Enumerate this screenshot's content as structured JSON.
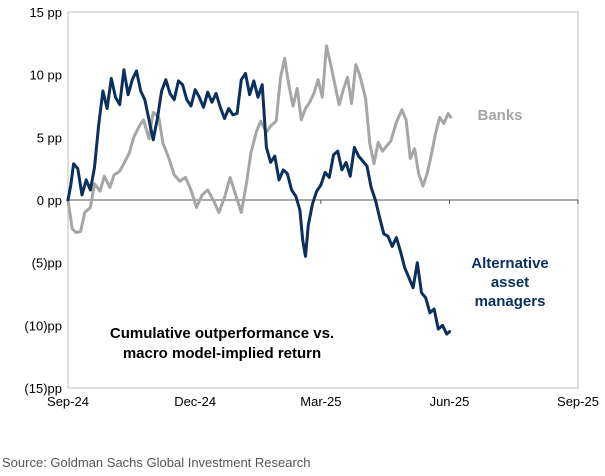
{
  "chart_data": {
    "type": "line",
    "title_lines": [
      "Cumulative outperformance vs.",
      "macro model-implied return"
    ],
    "xlabel": "",
    "ylabel": "",
    "ylim": [
      -15,
      15
    ],
    "y_ticks": [
      15,
      10,
      5,
      0,
      -5,
      -10,
      -15
    ],
    "y_tick_labels": [
      "15 pp",
      "10 pp",
      "5 pp",
      "0 pp",
      "(5)pp",
      "(10)pp",
      "(15)pp"
    ],
    "x_ticks": [
      "2024-09-01",
      "2024-12-01",
      "2025-03-01",
      "2025-06-01",
      "2025-09-01"
    ],
    "x_tick_labels": [
      "Sep-24",
      "Dec-24",
      "Mar-25",
      "Jun-25",
      "Sep-25"
    ],
    "grid": false,
    "series": [
      {
        "name": "Banks",
        "color": "#a6a6a6",
        "points": [
          [
            "2024-09-01",
            0.0
          ],
          [
            "2024-09-04",
            -2.3
          ],
          [
            "2024-09-07",
            -2.6
          ],
          [
            "2024-09-10",
            -2.5
          ],
          [
            "2024-09-13",
            -1.0
          ],
          [
            "2024-09-17",
            -0.6
          ],
          [
            "2024-09-20",
            1.3
          ],
          [
            "2024-09-24",
            0.7
          ],
          [
            "2024-09-27",
            1.9
          ],
          [
            "2024-10-01",
            1.0
          ],
          [
            "2024-10-04",
            2.0
          ],
          [
            "2024-10-08",
            2.3
          ],
          [
            "2024-10-11",
            2.9
          ],
          [
            "2024-10-15",
            3.8
          ],
          [
            "2024-10-18",
            5.0
          ],
          [
            "2024-10-22",
            5.9
          ],
          [
            "2024-10-25",
            6.4
          ],
          [
            "2024-10-29",
            4.9
          ],
          [
            "2024-11-01",
            7.0
          ],
          [
            "2024-11-05",
            6.6
          ],
          [
            "2024-11-08",
            4.5
          ],
          [
            "2024-11-12",
            3.4
          ],
          [
            "2024-11-16",
            2.0
          ],
          [
            "2024-11-20",
            1.5
          ],
          [
            "2024-11-24",
            1.8
          ],
          [
            "2024-11-28",
            0.8
          ],
          [
            "2024-12-02",
            -0.6
          ],
          [
            "2024-12-06",
            0.4
          ],
          [
            "2024-12-10",
            0.8
          ],
          [
            "2024-12-14",
            0.0
          ],
          [
            "2024-12-18",
            -1.0
          ],
          [
            "2024-12-22",
            0.2
          ],
          [
            "2024-12-26",
            1.8
          ],
          [
            "2024-12-30",
            0.4
          ],
          [
            "2025-01-03",
            -1.0
          ],
          [
            "2025-01-07",
            1.5
          ],
          [
            "2025-01-10",
            3.8
          ],
          [
            "2025-01-14",
            5.5
          ],
          [
            "2025-01-17",
            6.3
          ],
          [
            "2025-01-21",
            5.4
          ],
          [
            "2025-01-24",
            5.9
          ],
          [
            "2025-01-28",
            6.3
          ],
          [
            "2025-01-31",
            9.7
          ],
          [
            "2025-02-03",
            11.3
          ],
          [
            "2025-02-06",
            9.2
          ],
          [
            "2025-02-09",
            7.5
          ],
          [
            "2025-02-12",
            8.9
          ],
          [
            "2025-02-15",
            6.4
          ],
          [
            "2025-02-18",
            7.3
          ],
          [
            "2025-02-21",
            7.8
          ],
          [
            "2025-02-24",
            8.5
          ],
          [
            "2025-02-27",
            9.6
          ],
          [
            "2025-03-02",
            8.2
          ],
          [
            "2025-03-05",
            12.3
          ],
          [
            "2025-03-08",
            10.8
          ],
          [
            "2025-03-11",
            9.2
          ],
          [
            "2025-03-14",
            7.6
          ],
          [
            "2025-03-17",
            8.8
          ],
          [
            "2025-03-20",
            9.8
          ],
          [
            "2025-03-23",
            7.7
          ],
          [
            "2025-03-26",
            10.8
          ],
          [
            "2025-03-29",
            9.9
          ],
          [
            "2025-04-02",
            8.1
          ],
          [
            "2025-04-05",
            4.5
          ],
          [
            "2025-04-08",
            2.9
          ],
          [
            "2025-04-11",
            4.6
          ],
          [
            "2025-04-14",
            3.9
          ],
          [
            "2025-04-17",
            4.3
          ],
          [
            "2025-04-20",
            4.7
          ],
          [
            "2025-04-24",
            6.2
          ],
          [
            "2025-04-28",
            7.2
          ],
          [
            "2025-05-01",
            6.4
          ],
          [
            "2025-05-04",
            3.3
          ],
          [
            "2025-05-07",
            4.1
          ],
          [
            "2025-05-10",
            2.1
          ],
          [
            "2025-05-13",
            1.1
          ],
          [
            "2025-05-16",
            2.1
          ],
          [
            "2025-05-19",
            3.6
          ],
          [
            "2025-05-22",
            5.3
          ],
          [
            "2025-05-25",
            6.6
          ],
          [
            "2025-05-28",
            6.1
          ],
          [
            "2025-05-31",
            6.9
          ],
          [
            "2025-06-02",
            6.6
          ]
        ]
      },
      {
        "name": "Alternative asset managers",
        "label_lines": [
          "Alternative",
          "asset",
          "managers"
        ],
        "color": "#0b2f5e",
        "points": [
          [
            "2024-09-01",
            0.0
          ],
          [
            "2024-09-03",
            1.2
          ],
          [
            "2024-09-05",
            2.9
          ],
          [
            "2024-09-08",
            2.5
          ],
          [
            "2024-09-11",
            0.4
          ],
          [
            "2024-09-14",
            1.6
          ],
          [
            "2024-09-17",
            0.8
          ],
          [
            "2024-09-20",
            2.6
          ],
          [
            "2024-09-23",
            6.0
          ],
          [
            "2024-09-26",
            8.7
          ],
          [
            "2024-09-29",
            7.3
          ],
          [
            "2024-10-02",
            9.7
          ],
          [
            "2024-10-05",
            8.2
          ],
          [
            "2024-10-08",
            7.6
          ],
          [
            "2024-10-11",
            10.4
          ],
          [
            "2024-10-14",
            8.4
          ],
          [
            "2024-10-17",
            9.6
          ],
          [
            "2024-10-20",
            10.3
          ],
          [
            "2024-10-23",
            8.7
          ],
          [
            "2024-10-26",
            8.0
          ],
          [
            "2024-10-29",
            6.4
          ],
          [
            "2024-11-01",
            4.8
          ],
          [
            "2024-11-04",
            6.5
          ],
          [
            "2024-11-07",
            8.7
          ],
          [
            "2024-11-10",
            9.6
          ],
          [
            "2024-11-13",
            8.5
          ],
          [
            "2024-11-16",
            8.0
          ],
          [
            "2024-11-19",
            9.5
          ],
          [
            "2024-11-22",
            9.2
          ],
          [
            "2024-11-25",
            8.0
          ],
          [
            "2024-11-28",
            7.5
          ],
          [
            "2024-12-01",
            8.8
          ],
          [
            "2024-12-04",
            8.2
          ],
          [
            "2024-12-07",
            7.4
          ],
          [
            "2024-12-10",
            8.6
          ],
          [
            "2024-12-13",
            7.8
          ],
          [
            "2024-12-16",
            8.5
          ],
          [
            "2024-12-19",
            7.4
          ],
          [
            "2024-12-22",
            6.5
          ],
          [
            "2024-12-25",
            7.3
          ],
          [
            "2024-12-28",
            6.8
          ],
          [
            "2024-12-31",
            6.9
          ],
          [
            "2025-01-03",
            9.6
          ],
          [
            "2025-01-06",
            10.1
          ],
          [
            "2025-01-09",
            8.4
          ],
          [
            "2025-01-12",
            9.5
          ],
          [
            "2025-01-15",
            8.2
          ],
          [
            "2025-01-18",
            9.2
          ],
          [
            "2025-01-21",
            4.2
          ],
          [
            "2025-01-24",
            3.0
          ],
          [
            "2025-01-27",
            3.5
          ],
          [
            "2025-01-30",
            1.6
          ],
          [
            "2025-02-02",
            2.4
          ],
          [
            "2025-02-05",
            2.1
          ],
          [
            "2025-02-08",
            0.8
          ],
          [
            "2025-02-11",
            0.3
          ],
          [
            "2025-02-14",
            -0.8
          ],
          [
            "2025-02-16",
            -3.2
          ],
          [
            "2025-02-18",
            -4.5
          ],
          [
            "2025-02-20",
            -2.0
          ],
          [
            "2025-02-23",
            -0.3
          ],
          [
            "2025-02-26",
            0.7
          ],
          [
            "2025-03-01",
            1.2
          ],
          [
            "2025-03-04",
            2.2
          ],
          [
            "2025-03-07",
            1.8
          ],
          [
            "2025-03-10",
            3.6
          ],
          [
            "2025-03-13",
            3.9
          ],
          [
            "2025-03-16",
            2.4
          ],
          [
            "2025-03-19",
            3.0
          ],
          [
            "2025-03-22",
            1.9
          ],
          [
            "2025-03-25",
            4.2
          ],
          [
            "2025-03-28",
            3.5
          ],
          [
            "2025-03-31",
            3.1
          ],
          [
            "2025-04-03",
            2.7
          ],
          [
            "2025-04-06",
            1.0
          ],
          [
            "2025-04-09",
            0.0
          ],
          [
            "2025-04-12",
            -1.4
          ],
          [
            "2025-04-15",
            -2.7
          ],
          [
            "2025-04-18",
            -2.9
          ],
          [
            "2025-04-21",
            -3.7
          ],
          [
            "2025-04-24",
            -3.0
          ],
          [
            "2025-04-27",
            -4.1
          ],
          [
            "2025-04-30",
            -5.4
          ],
          [
            "2025-05-03",
            -6.2
          ],
          [
            "2025-05-06",
            -7.0
          ],
          [
            "2025-05-09",
            -5.0
          ],
          [
            "2025-05-12",
            -7.4
          ],
          [
            "2025-05-15",
            -7.8
          ],
          [
            "2025-05-18",
            -9.0
          ],
          [
            "2025-05-21",
            -8.7
          ],
          [
            "2025-05-24",
            -10.3
          ],
          [
            "2025-05-27",
            -10.0
          ],
          [
            "2025-05-30",
            -10.7
          ],
          [
            "2025-06-01",
            -10.5
          ]
        ]
      }
    ]
  },
  "source": "Source: Goldman Sachs Global Investment Research"
}
